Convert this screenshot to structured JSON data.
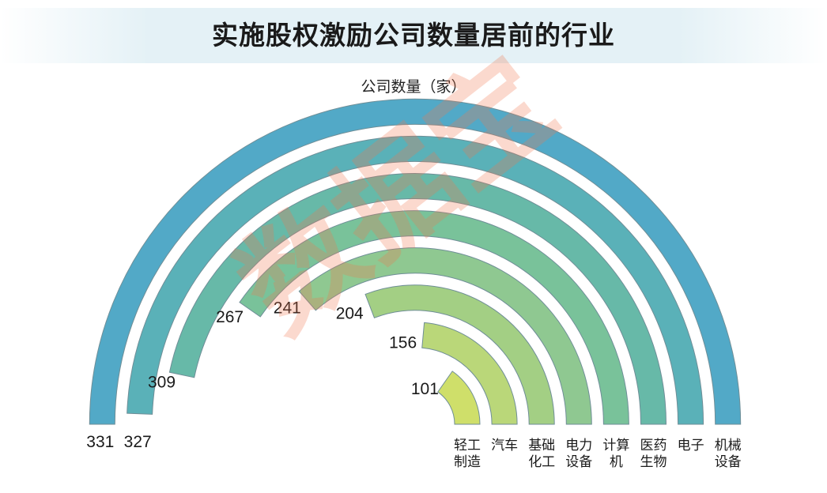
{
  "title": "实施股权激励公司数量居前的行业",
  "subtitle": "公司数量（家）",
  "watermark": "数据宝",
  "chart_data": {
    "type": "radial-bar",
    "categories": [
      "轻工\n制造",
      "汽车",
      "基础\n化工",
      "电力\n设备",
      "计算\n机",
      "医药\n生物",
      "电子",
      "机械\n设备"
    ],
    "values": [
      101,
      156,
      204,
      241,
      267,
      309,
      327,
      331
    ],
    "colors": [
      "#cfdf6a",
      "#bad779",
      "#a3cf84",
      "#8fc891",
      "#79c29a",
      "#67b9a8",
      "#5ab1b8",
      "#52a9c7"
    ]
  }
}
